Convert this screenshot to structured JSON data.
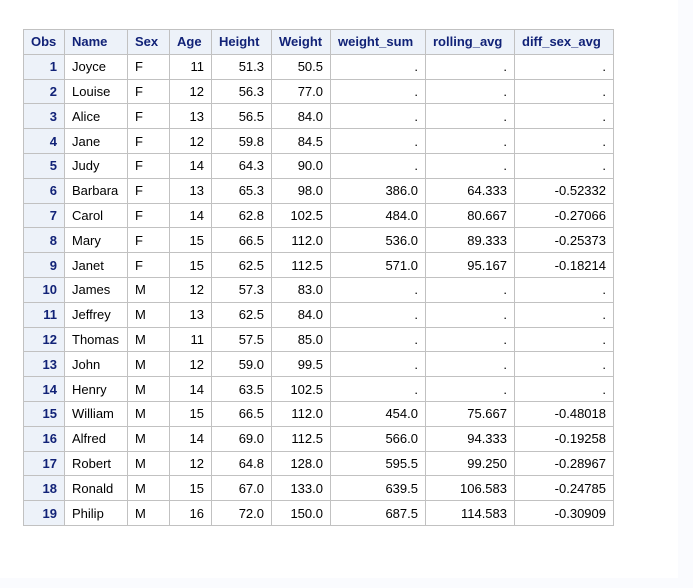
{
  "table": {
    "columns": [
      "Obs",
      "Name",
      "Sex",
      "Age",
      "Height",
      "Weight",
      "weight_sum",
      "rolling_avg",
      "diff_sex_avg"
    ],
    "rows": [
      [
        "1",
        "Joyce",
        "F",
        "11",
        "51.3",
        "50.5",
        ".",
        ".",
        "."
      ],
      [
        "2",
        "Louise",
        "F",
        "12",
        "56.3",
        "77.0",
        ".",
        ".",
        "."
      ],
      [
        "3",
        "Alice",
        "F",
        "13",
        "56.5",
        "84.0",
        ".",
        ".",
        "."
      ],
      [
        "4",
        "Jane",
        "F",
        "12",
        "59.8",
        "84.5",
        ".",
        ".",
        "."
      ],
      [
        "5",
        "Judy",
        "F",
        "14",
        "64.3",
        "90.0",
        ".",
        ".",
        "."
      ],
      [
        "6",
        "Barbara",
        "F",
        "13",
        "65.3",
        "98.0",
        "386.0",
        "64.333",
        "-0.52332"
      ],
      [
        "7",
        "Carol",
        "F",
        "14",
        "62.8",
        "102.5",
        "484.0",
        "80.667",
        "-0.27066"
      ],
      [
        "8",
        "Mary",
        "F",
        "15",
        "66.5",
        "112.0",
        "536.0",
        "89.333",
        "-0.25373"
      ],
      [
        "9",
        "Janet",
        "F",
        "15",
        "62.5",
        "112.5",
        "571.0",
        "95.167",
        "-0.18214"
      ],
      [
        "10",
        "James",
        "M",
        "12",
        "57.3",
        "83.0",
        ".",
        ".",
        "."
      ],
      [
        "11",
        "Jeffrey",
        "M",
        "13",
        "62.5",
        "84.0",
        ".",
        ".",
        "."
      ],
      [
        "12",
        "Thomas",
        "M",
        "11",
        "57.5",
        "85.0",
        ".",
        ".",
        "."
      ],
      [
        "13",
        "John",
        "M",
        "12",
        "59.0",
        "99.5",
        ".",
        ".",
        "."
      ],
      [
        "14",
        "Henry",
        "M",
        "14",
        "63.5",
        "102.5",
        ".",
        ".",
        "."
      ],
      [
        "15",
        "William",
        "M",
        "15",
        "66.5",
        "112.0",
        "454.0",
        "75.667",
        "-0.48018"
      ],
      [
        "16",
        "Alfred",
        "M",
        "14",
        "69.0",
        "112.5",
        "566.0",
        "94.333",
        "-0.19258"
      ],
      [
        "17",
        "Robert",
        "M",
        "12",
        "64.8",
        "128.0",
        "595.5",
        "99.250",
        "-0.28967"
      ],
      [
        "18",
        "Ronald",
        "M",
        "15",
        "67.0",
        "133.0",
        "639.5",
        "106.583",
        "-0.24785"
      ],
      [
        "19",
        "Philip",
        "M",
        "16",
        "72.0",
        "150.0",
        "687.5",
        "114.583",
        "-0.30909"
      ]
    ]
  }
}
